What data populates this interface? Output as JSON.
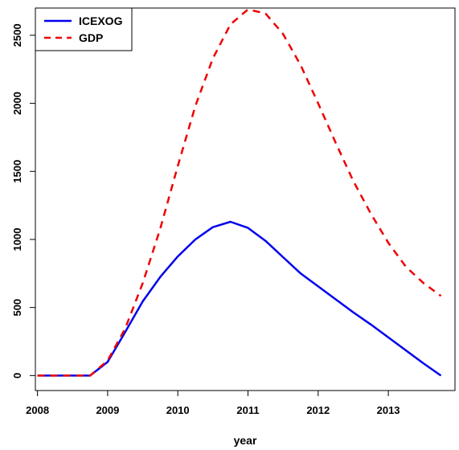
{
  "chart_data": {
    "type": "line",
    "title": "",
    "xlabel": "year",
    "ylabel": "",
    "xlim": [
      2007.97,
      2013.95
    ],
    "ylim": [
      -110,
      2700
    ],
    "xticks": [
      2008,
      2009,
      2010,
      2011,
      2012,
      2013
    ],
    "yticks": [
      0,
      500,
      1000,
      1500,
      2000,
      2500
    ],
    "grid": false,
    "legend_position": "top-left",
    "series": [
      {
        "name": "ICEXOG",
        "color": "#0000ee",
        "line_style": "solid",
        "x": [
          2008,
          2008.25,
          2008.5,
          2008.75,
          2009,
          2009.25,
          2009.5,
          2009.75,
          2010,
          2010.25,
          2010.5,
          2010.75,
          2011,
          2011.25,
          2011.5,
          2011.75,
          2012,
          2012.25,
          2012.5,
          2012.75,
          2013,
          2013.25,
          2013.5,
          2013.75
        ],
        "values": [
          0,
          0,
          0,
          0,
          100,
          320,
          545,
          725,
          875,
          1000,
          1090,
          1130,
          1085,
          990,
          870,
          750,
          655,
          560,
          465,
          375,
          280,
          185,
          90,
          0
        ]
      },
      {
        "name": "GDP",
        "color": "#ee0000",
        "line_style": "dashed",
        "x": [
          2008,
          2008.25,
          2008.5,
          2008.75,
          2009,
          2009.25,
          2009.5,
          2009.75,
          2010,
          2010.25,
          2010.5,
          2010.75,
          2011,
          2011.25,
          2011.5,
          2011.75,
          2012,
          2012.25,
          2012.5,
          2012.75,
          2013,
          2013.25,
          2013.5,
          2013.75
        ],
        "values": [
          0,
          0,
          0,
          0,
          110,
          345,
          680,
          1080,
          1540,
          1980,
          2330,
          2580,
          2690,
          2660,
          2510,
          2280,
          2000,
          1710,
          1430,
          1190,
          975,
          800,
          680,
          585
        ]
      }
    ]
  }
}
